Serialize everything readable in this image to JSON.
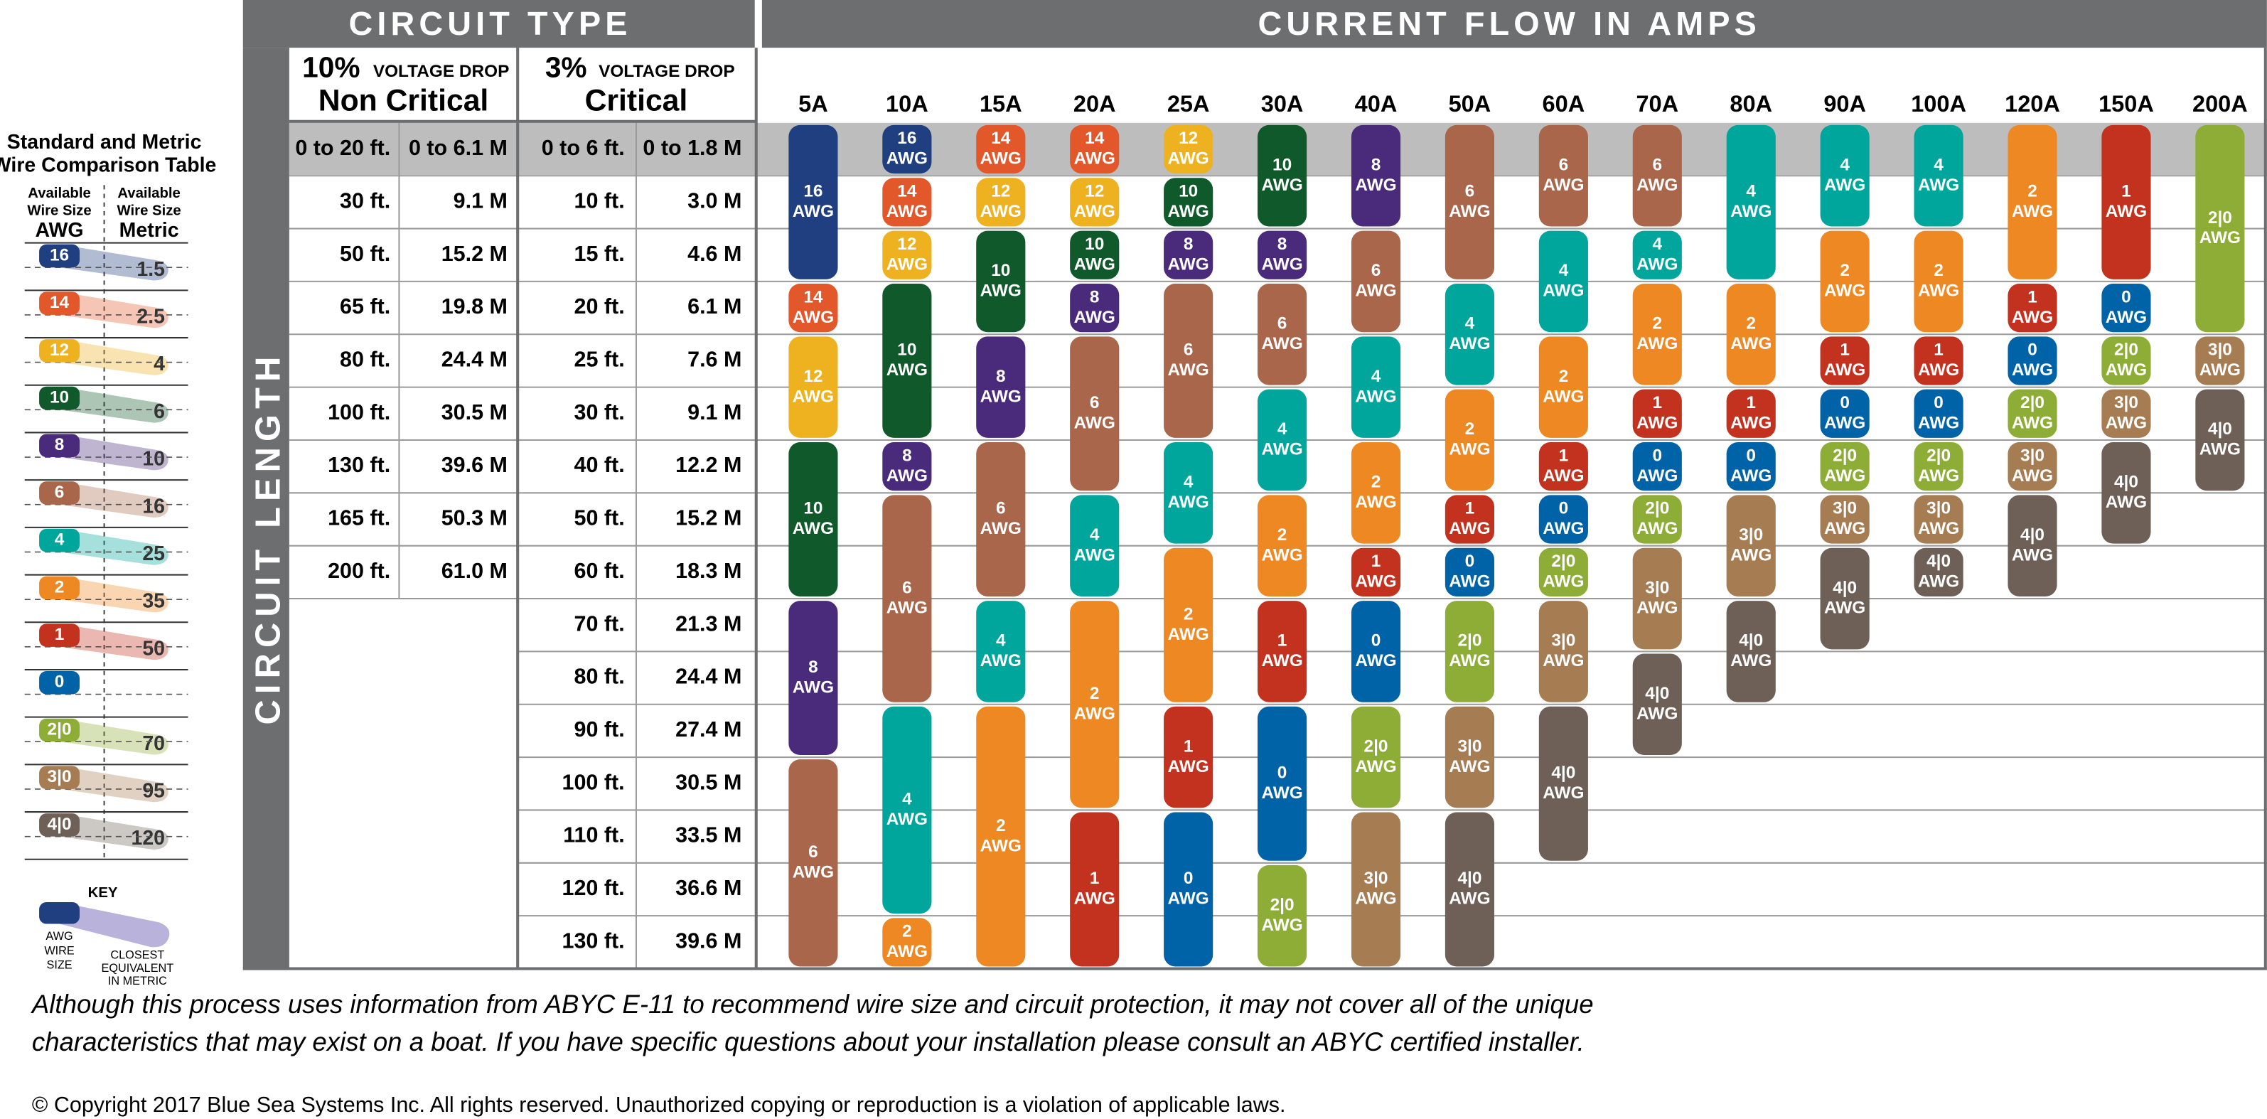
{
  "legend": {
    "title": [
      "Standard and Metric",
      "Wire Comparison Table"
    ],
    "awg_header": [
      "Available",
      "Wire Size",
      "AWG"
    ],
    "metric_header": [
      "Available",
      "Wire Size",
      "Metric"
    ],
    "entries": [
      {
        "awg": "16",
        "metric": "1.5",
        "color": "#1f3f80"
      },
      {
        "awg": "14",
        "metric": "2.5",
        "color": "#e2582a"
      },
      {
        "awg": "12",
        "metric": "4",
        "color": "#eeb220"
      },
      {
        "awg": "10",
        "metric": "6",
        "color": "#10592b"
      },
      {
        "awg": "8",
        "metric": "10",
        "color": "#4a2a7a"
      },
      {
        "awg": "6",
        "metric": "16",
        "color": "#a9664b"
      },
      {
        "awg": "4",
        "metric": "25",
        "color": "#00a69c"
      },
      {
        "awg": "2",
        "metric": "35",
        "color": "#ee8823"
      },
      {
        "awg": "1",
        "metric": "50",
        "color": "#c2321f"
      },
      {
        "awg": "0",
        "metric": null,
        "color": "#0063a7"
      },
      {
        "awg": "2|0",
        "metric": "70",
        "color": "#8dad36"
      },
      {
        "awg": "3|0",
        "metric": "95",
        "color": "#a67c53"
      },
      {
        "awg": "4|0",
        "metric": "120",
        "color": "#6e6057"
      }
    ],
    "key": {
      "title": "KEY",
      "awg": [
        "AWG",
        "WIRE",
        "SIZE"
      ],
      "metric": [
        "CLOSEST",
        "EQUIVALENT",
        "IN METRIC"
      ]
    }
  },
  "header": {
    "circuit_type": "CIRCUIT TYPE",
    "current_flow": "CURRENT FLOW IN AMPS",
    "circuit_length": "CIRCUIT LENGTH"
  },
  "non_critical": {
    "drop": "10%",
    "drop_label": "VOLTAGE DROP",
    "title": "Non Critical",
    "rows": [
      [
        "0 to 20 ft.",
        "0 to 6.1 M"
      ],
      [
        "30 ft.",
        "9.1 M"
      ],
      [
        "50 ft.",
        "15.2 M"
      ],
      [
        "65 ft.",
        "19.8 M"
      ],
      [
        "80 ft.",
        "24.4 M"
      ],
      [
        "100 ft.",
        "30.5 M"
      ],
      [
        "130 ft.",
        "39.6 M"
      ],
      [
        "165 ft.",
        "50.3 M"
      ],
      [
        "200 ft.",
        "61.0 M"
      ]
    ]
  },
  "critical": {
    "drop": "3%",
    "drop_label": "VOLTAGE DROP",
    "title": "Critical",
    "rows": [
      [
        "0 to 6 ft.",
        "0 to 1.8 M"
      ],
      [
        "10 ft.",
        "3.0 M"
      ],
      [
        "15 ft.",
        "4.6 M"
      ],
      [
        "20 ft.",
        "6.1 M"
      ],
      [
        "25 ft.",
        "7.6 M"
      ],
      [
        "30 ft.",
        "9.1 M"
      ],
      [
        "40 ft.",
        "12.2 M"
      ],
      [
        "50 ft.",
        "15.2 M"
      ],
      [
        "60 ft.",
        "18.3 M"
      ],
      [
        "70 ft.",
        "21.3 M"
      ],
      [
        "80 ft.",
        "24.4 M"
      ],
      [
        "90 ft.",
        "27.4 M"
      ],
      [
        "100 ft.",
        "30.5 M"
      ],
      [
        "110 ft.",
        "33.5 M"
      ],
      [
        "120 ft.",
        "36.6 M"
      ],
      [
        "130 ft.",
        "39.6 M"
      ]
    ]
  },
  "unit": "AWG",
  "amps": [
    {
      "label": "5A",
      "cells": [
        "16",
        "16",
        "16",
        "14",
        "12",
        "12",
        "10",
        "10",
        "10",
        "8",
        "8",
        "8",
        "6",
        "6",
        "6",
        "6"
      ]
    },
    {
      "label": "10A",
      "cells": [
        "16",
        "14",
        "12",
        "10",
        "10",
        "10",
        "8",
        "6",
        "6",
        "6",
        "6",
        "4",
        "4",
        "4",
        "4",
        "2"
      ]
    },
    {
      "label": "15A",
      "cells": [
        "14",
        "12",
        "10",
        "10",
        "8",
        "8",
        "6",
        "6",
        "6",
        "4",
        "4",
        "2",
        "2",
        "2",
        "2",
        "2"
      ]
    },
    {
      "label": "20A",
      "cells": [
        "14",
        "12",
        "10",
        "8",
        "6",
        "6",
        "6",
        "4",
        "4",
        "2",
        "2",
        "2",
        "2",
        "1",
        "1",
        "1"
      ]
    },
    {
      "label": "25A",
      "cells": [
        "12",
        "10",
        "8",
        "6",
        "6",
        "6",
        "4",
        "4",
        "2",
        "2",
        "2",
        "1",
        "1",
        "0",
        "0",
        "0"
      ]
    },
    {
      "label": "30A",
      "cells": [
        "10",
        "10",
        "8",
        "6",
        "6",
        "4",
        "4",
        "2",
        "2",
        "1",
        "1",
        "0",
        "0",
        "0",
        "2|0",
        "2|0"
      ]
    },
    {
      "label": "40A",
      "cells": [
        "8",
        "8",
        "6",
        "6",
        "4",
        "4",
        "2",
        "2",
        "1",
        "0",
        "0",
        "2|0",
        "2|0",
        "3|0",
        "3|0",
        "3|0"
      ]
    },
    {
      "label": "50A",
      "cells": [
        "6",
        "6",
        "6",
        "4",
        "4",
        "2",
        "2",
        "1",
        "0",
        "2|0",
        "2|0",
        "3|0",
        "3|0",
        "4|0",
        "4|0",
        "4|0"
      ]
    },
    {
      "label": "60A",
      "cells": [
        "6",
        "6",
        "4",
        "4",
        "2",
        "2",
        "1",
        "0",
        "2|0",
        "3|0",
        "3|0",
        "4|0",
        "4|0",
        "4|0",
        null,
        null
      ]
    },
    {
      "label": "70A",
      "cells": [
        "6",
        "6",
        "4",
        "2",
        "2",
        "1",
        "0",
        "2|0",
        "3|0",
        "3|0",
        "4|0",
        "4|0",
        null,
        null,
        null,
        null
      ]
    },
    {
      "label": "80A",
      "cells": [
        "4",
        "4",
        "4",
        "2",
        "2",
        "1",
        "0",
        "3|0",
        "3|0",
        "4|0",
        "4|0",
        null,
        null,
        null,
        null,
        null
      ]
    },
    {
      "label": "90A",
      "cells": [
        "4",
        "4",
        "2",
        "2",
        "1",
        "0",
        "2|0",
        "3|0",
        "4|0",
        "4|0",
        null,
        null,
        null,
        null,
        null,
        null
      ]
    },
    {
      "label": "100A",
      "cells": [
        "4",
        "4",
        "2",
        "2",
        "1",
        "0",
        "2|0",
        "3|0",
        "4|0",
        null,
        null,
        null,
        null,
        null,
        null,
        null
      ]
    },
    {
      "label": "120A",
      "cells": [
        "2",
        "2",
        "2",
        "1",
        "0",
        "2|0",
        "3|0",
        "4|0",
        "4|0",
        null,
        null,
        null,
        null,
        null,
        null,
        null
      ]
    },
    {
      "label": "150A",
      "cells": [
        "1",
        "1",
        "1",
        "0",
        "2|0",
        "3|0",
        "4|0",
        "4|0",
        null,
        null,
        null,
        null,
        null,
        null,
        null,
        null
      ]
    },
    {
      "label": "200A",
      "cells": [
        "2|0",
        "2|0",
        "2|0",
        "2|0",
        "3|0",
        "4|0",
        "4|0",
        null,
        null,
        null,
        null,
        null,
        null,
        null,
        null,
        null
      ]
    }
  ],
  "footer": {
    "disclaimer": [
      "Although this process uses information from ABYC E-11 to recommend wire size and circuit protection, it may not cover all of the unique",
      "characteristics that may exist on a boat. If you have specific questions about your installation please consult an ABYC certified installer."
    ],
    "copyright": "© Copyright 2017 Blue Sea Systems Inc. All rights reserved. Unauthorized copying or reproduction is a violation of applicable laws."
  }
}
